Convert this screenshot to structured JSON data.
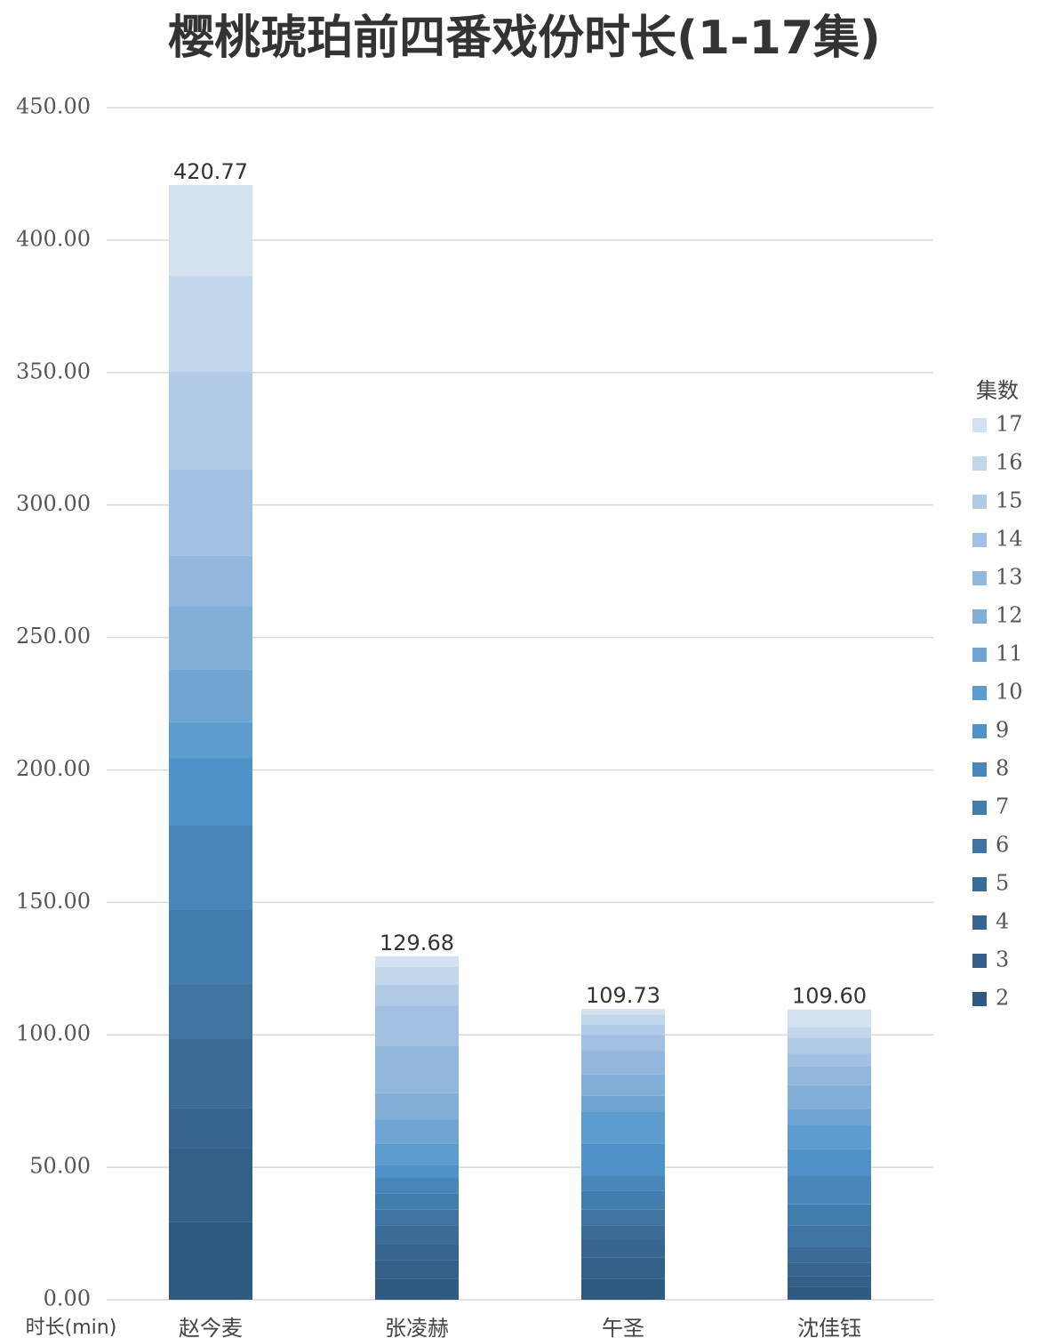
{
  "chart_data": {
    "type": "stacked_bar",
    "title": "樱桃琥珀前四番戏份时长(1-17集)",
    "y_label": "时长(min)",
    "legend_title": "集数",
    "categories": [
      "赵今麦",
      "张凌赫",
      "午圣",
      "沈佳钰"
    ],
    "series": [
      {
        "name": "2",
        "color": "#2e5a82",
        "values": [
          29.5,
          8,
          8,
          5
        ]
      },
      {
        "name": "3",
        "color": "#335f88",
        "values": [
          27.9,
          7,
          8,
          4
        ]
      },
      {
        "name": "4",
        "color": "#37658f",
        "values": [
          15.1,
          6,
          7,
          5
        ]
      },
      {
        "name": "5",
        "color": "#3b6c98",
        "values": [
          25.9,
          7,
          5,
          6
        ]
      },
      {
        "name": "6",
        "color": "#3f74a2",
        "values": [
          20.8,
          6,
          6,
          8
        ]
      },
      {
        "name": "7",
        "color": "#437dad",
        "values": [
          28.2,
          6,
          7,
          8
        ]
      },
      {
        "name": "8",
        "color": "#4886ba",
        "values": [
          31.6,
          6,
          6,
          11
        ]
      },
      {
        "name": "9",
        "color": "#4f92c9",
        "values": [
          25.5,
          5,
          12,
          10
        ]
      },
      {
        "name": "10",
        "color": "#5d9ccf",
        "values": [
          13.5,
          8,
          12,
          9
        ]
      },
      {
        "name": "11",
        "color": "#6fa4d3",
        "values": [
          20.0,
          9,
          6,
          6
        ]
      },
      {
        "name": "12",
        "color": "#82aed8",
        "values": [
          23.6,
          10,
          8,
          9
        ]
      },
      {
        "name": "13",
        "color": "#93b7dc",
        "values": [
          19.4,
          18,
          9,
          7
        ]
      },
      {
        "name": "14",
        "color": "#a2c0e1",
        "values": [
          32.6,
          15,
          6,
          5
        ]
      },
      {
        "name": "15",
        "color": "#b1cbe6",
        "values": [
          36.6,
          8,
          4,
          6
        ]
      },
      {
        "name": "16",
        "color": "#c2d6eb",
        "values": [
          36.3,
          6.68,
          3.73,
          4
        ]
      },
      {
        "name": "17",
        "color": "#d3e1f0",
        "values": [
          34.27,
          4,
          2,
          6.6
        ]
      }
    ],
    "totals": {
      "values": [
        420.77,
        129.68,
        109.73,
        109.6
      ],
      "value_labels": [
        "420.77",
        "129.68",
        "109.73",
        "109.60"
      ]
    },
    "ylim": [
      0,
      450
    ],
    "yticks": [
      {
        "value": 0,
        "label": "0.00"
      },
      {
        "value": 50,
        "label": "50.00"
      },
      {
        "value": 100,
        "label": "100.00"
      },
      {
        "value": 150,
        "label": "150.00"
      },
      {
        "value": 200,
        "label": "200.00"
      },
      {
        "value": 250,
        "label": "250.00"
      },
      {
        "value": 300,
        "label": "300.00"
      },
      {
        "value": 350,
        "label": "350.00"
      },
      {
        "value": 400,
        "label": "400.00"
      },
      {
        "value": 450,
        "label": "450.00"
      }
    ],
    "grid": true,
    "legend": "right"
  }
}
